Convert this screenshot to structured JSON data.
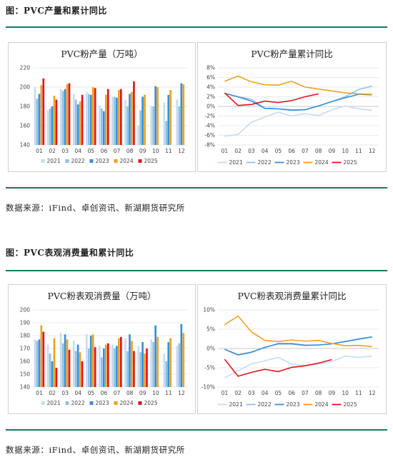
{
  "sections": [
    {
      "title": "图：PVC产量和累计同比",
      "source": "数据来源：iFind、卓创资讯、新湖期货研究所"
    },
    {
      "title": "图：PVC表观消费量和累计同比",
      "source": "数据来源：iFind、卓创资讯、新湖期货研究所"
    }
  ],
  "legend_colors": {
    "2021": "#c6dcf0",
    "2022": "#8ec1e8",
    "2023": "#3a8fd4",
    "2024": "#f0a020",
    "2025": "#e0141e"
  },
  "chart_data": [
    {
      "id": "prod-bar",
      "type": "bar",
      "title": "PVC粉产量（万吨）",
      "categories": [
        "01",
        "02",
        "03",
        "04",
        "05",
        "06",
        "07",
        "08",
        "09",
        "10",
        "11",
        "12"
      ],
      "ylim": [
        140,
        220
      ],
      "yticks": [
        140,
        160,
        180,
        200,
        220
      ],
      "grid": true,
      "legend": "bottom",
      "series": [
        {
          "name": "2021",
          "values": [
            200,
            176,
            198,
            193,
            195,
            181,
            190,
            187,
            160,
            180,
            184,
            187
          ]
        },
        {
          "name": "2022",
          "values": [
            188,
            178,
            196,
            187,
            193,
            178,
            190,
            180,
            176,
            180,
            165,
            180
          ]
        },
        {
          "name": "2023",
          "values": [
            193,
            180,
            198,
            182,
            192,
            175,
            189,
            193,
            190,
            201,
            192,
            204
          ]
        },
        {
          "name": "2024",
          "values": [
            202,
            191,
            203,
            185,
            200,
            192,
            197,
            195,
            192,
            200,
            197,
            203
          ]
        },
        {
          "name": "2025",
          "values": [
            209,
            187,
            204,
            192,
            199,
            198,
            198,
            206,
            null,
            null,
            null,
            null
          ]
        }
      ]
    },
    {
      "id": "prod-line",
      "type": "line",
      "title": "PVC粉产量累计同比",
      "categories": [
        "01",
        "02",
        "03",
        "04",
        "05",
        "06",
        "07",
        "08",
        "09",
        "10",
        "11",
        "12"
      ],
      "ylim": [
        -8,
        8
      ],
      "yticks": [
        -8,
        -6,
        -4,
        -2,
        0,
        2,
        4,
        6,
        8
      ],
      "ytick_labels": [
        "-8%",
        "-6%",
        "-4%",
        "-2%",
        "0%",
        "2%",
        "4%",
        "6%",
        "8%"
      ],
      "grid": true,
      "legend": "bottom",
      "series": [
        {
          "name": "2021",
          "values": [
            -6.2,
            -5.8,
            -3.3,
            -2.2,
            -1.2,
            -2.0,
            -1.5,
            -1.9,
            -0.7,
            0.1,
            -0.5,
            -0.8
          ]
        },
        {
          "name": "2022",
          "values": [
            2.7,
            2.0,
            1.5,
            -0.4,
            -0.5,
            -0.7,
            -0.7,
            0.1,
            1.0,
            2.0,
            3.5,
            4.2
          ]
        },
        {
          "name": "2023",
          "values": [
            2.7,
            2.0,
            1.1,
            -0.4,
            -0.5,
            -0.8,
            -0.7,
            0.1,
            1.0,
            1.8,
            2.5,
            2.4
          ]
        },
        {
          "name": "2024",
          "values": [
            5.2,
            6.3,
            5.1,
            4.5,
            4.4,
            5.2,
            4.0,
            3.6,
            3.2,
            2.8,
            2.6,
            2.5
          ]
        },
        {
          "name": "2025",
          "values": [
            2.8,
            0.2,
            0.4,
            1.1,
            0.8,
            1.2,
            2.0,
            2.6,
            null,
            null,
            null,
            null
          ]
        }
      ]
    },
    {
      "id": "cons-bar",
      "type": "bar",
      "title": "PVC粉表观消费量（万吨）",
      "categories": [
        "01",
        "02",
        "03",
        "04",
        "05",
        "06",
        "07",
        "08",
        "09",
        "10",
        "11",
        "12"
      ],
      "ylim": [
        140,
        200
      ],
      "yticks": [
        140,
        150,
        160,
        170,
        180,
        190,
        200
      ],
      "grid": true,
      "legend": "bottom",
      "series": [
        {
          "name": "2021",
          "values": [
            177,
            173,
            182,
            176,
            181,
            172,
            173,
            178,
            172,
            177,
            166,
            172
          ]
        },
        {
          "name": "2022",
          "values": [
            176,
            166,
            174,
            168,
            170,
            163,
            170,
            168,
            167,
            175,
            160,
            174
          ]
        },
        {
          "name": "2023",
          "values": [
            177,
            160,
            181,
            173,
            180,
            170,
            172,
            181,
            175,
            188,
            175,
            189
          ]
        },
        {
          "name": "2024",
          "values": [
            188,
            178,
            177,
            167,
            181,
            173,
            178,
            176,
            166,
            179,
            178,
            182
          ]
        },
        {
          "name": "2025",
          "values": [
            183,
            155,
            169,
            160,
            171,
            174,
            179,
            168,
            170,
            null,
            null,
            null
          ]
        }
      ]
    },
    {
      "id": "cons-line",
      "type": "line",
      "title": "PVC粉表观消费量累计同比",
      "categories": [
        "01",
        "02",
        "03",
        "04",
        "05",
        "06",
        "07",
        "08",
        "09",
        "10",
        "11",
        "12"
      ],
      "ylim": [
        -10,
        10
      ],
      "yticks": [
        -10,
        -5,
        0,
        5,
        10
      ],
      "ytick_labels": [
        "-10%",
        "-5%",
        "0%",
        "5%",
        "10%"
      ],
      "grid": true,
      "legend": "bottom",
      "series": [
        {
          "name": "2021",
          "values": [
            -7.6,
            -5.8,
            -4.0,
            -3.2,
            -2.3,
            -4.0,
            -4.4,
            -4.1,
            -3.4,
            -2.0,
            -2.3,
            -2.0
          ]
        },
        {
          "name": "2022",
          "values": [
            -0.2,
            -1.6,
            -0.9,
            0.2,
            1.3,
            1.3,
            0.9,
            0.9,
            1.2,
            1.8,
            2.5,
            3.0
          ]
        },
        {
          "name": "2023",
          "values": [
            -0.2,
            -1.7,
            -1.0,
            0.3,
            1.2,
            1.2,
            0.8,
            0.9,
            1.2,
            1.8,
            2.4,
            3.0
          ]
        },
        {
          "name": "2024",
          "values": [
            6.2,
            8.4,
            4.3,
            2.1,
            1.8,
            2.2,
            1.9,
            2.1,
            1.3,
            0.7,
            0.8,
            0.5
          ]
        },
        {
          "name": "2025",
          "values": [
            -2.8,
            -7.2,
            -6.2,
            -5.4,
            -6.0,
            -4.9,
            -4.5,
            -3.8,
            -2.9,
            null,
            null,
            null
          ]
        }
      ]
    }
  ]
}
